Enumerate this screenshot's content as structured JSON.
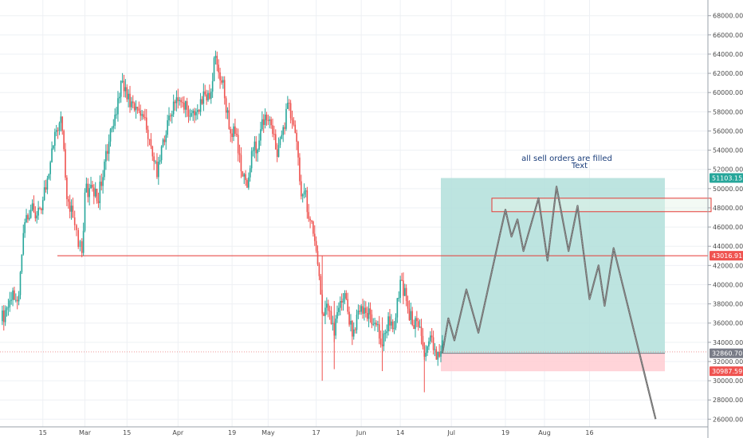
{
  "chart_data": {
    "type": "candlestick",
    "x_axis": {
      "tick_labels": [
        "15",
        "Mar",
        "15",
        "Apr",
        "19",
        "May",
        "17",
        "Jun",
        "14",
        "Jul",
        "19",
        "Aug",
        "16"
      ],
      "grid": true
    },
    "y_axis": {
      "ylim": [
        25000,
        69500
      ],
      "ticks": [
        26000,
        28000,
        30000,
        32000,
        34000,
        36000,
        38000,
        40000,
        42000,
        44000,
        46000,
        48000,
        50000,
        52000,
        54000,
        56000,
        58000,
        60000,
        62000,
        64000,
        66000,
        68000
      ],
      "tick_labels": [
        "26000.00",
        "28000.00",
        "30000.00",
        "32000.00",
        "34000.00",
        "36000.00",
        "38000.00",
        "40000.00",
        "42000.00",
        "44000.00",
        "46000.00",
        "48000.00",
        "50000.00",
        "52000.00",
        "54000.00",
        "56000.00",
        "58000.00",
        "60000.00",
        "62000.00",
        "64000.00",
        "66000.00",
        "68000.00"
      ],
      "position": "right",
      "grid": true
    },
    "price_tags": [
      {
        "value": 51103.15,
        "label": "51103.15",
        "color": "#26a69a"
      },
      {
        "value": 43016.91,
        "label": "43016.91",
        "color": "#ef5350"
      },
      {
        "value": 32860.7,
        "label": "32860.70",
        "color": "#787b86"
      },
      {
        "value": 30987.59,
        "label": "30987.59",
        "color": "#ef5350"
      }
    ],
    "horizontal_line": {
      "value": 43016.91,
      "color": "#e53935"
    },
    "dotted_line": {
      "value": 33000,
      "color": "#ef9a9a"
    },
    "position_tool": {
      "entry": 32860.7,
      "target": 51103.15,
      "stop": 30987.59,
      "profit_color": "#b2dfdb",
      "loss_color": "#ffcdd2"
    },
    "sell_zone": {
      "top": 49000,
      "bottom": 47600,
      "color": "#e53935"
    },
    "annotation": {
      "line1": "all sell orders are filled",
      "line2": "Text",
      "color": "#1a3d7a"
    },
    "projection_path": [
      {
        "date": "2021-06-28",
        "value": 32860
      },
      {
        "date": "2021-06-30",
        "value": 36500
      },
      {
        "date": "2021-07-02",
        "value": 34200
      },
      {
        "date": "2021-07-06",
        "value": 39500
      },
      {
        "date": "2021-07-10",
        "value": 35000
      },
      {
        "date": "2021-07-17",
        "value": 45000
      },
      {
        "date": "2021-07-19",
        "value": 47800
      },
      {
        "date": "2021-07-21",
        "value": 45000
      },
      {
        "date": "2021-07-23",
        "value": 46800
      },
      {
        "date": "2021-07-25",
        "value": 43500
      },
      {
        "date": "2021-07-30",
        "value": 49000
      },
      {
        "date": "2021-08-02",
        "value": 42500
      },
      {
        "date": "2021-08-05",
        "value": 50200
      },
      {
        "date": "2021-08-09",
        "value": 43500
      },
      {
        "date": "2021-08-12",
        "value": 48200
      },
      {
        "date": "2021-08-16",
        "value": 38500
      },
      {
        "date": "2021-08-19",
        "value": 42000
      },
      {
        "date": "2021-08-21",
        "value": 37800
      },
      {
        "date": "2021-08-24",
        "value": 43800
      },
      {
        "date": "2021-09-07",
        "value": 26000
      }
    ],
    "candles": [
      {
        "date": "2021-02-01",
        "value": 36200
      },
      {
        "date": "2021-02-03",
        "value": 37600
      },
      {
        "date": "2021-02-05",
        "value": 39400
      },
      {
        "date": "2021-02-07",
        "value": 38900
      },
      {
        "date": "2021-02-09",
        "value": 46500
      },
      {
        "date": "2021-02-11",
        "value": 47800
      },
      {
        "date": "2021-02-13",
        "value": 47200
      },
      {
        "date": "2021-02-15",
        "value": 48800
      },
      {
        "date": "2021-02-17",
        "value": 51500
      },
      {
        "date": "2021-02-19",
        "value": 55900
      },
      {
        "date": "2021-02-21",
        "value": 57500
      },
      {
        "date": "2021-02-22",
        "value": 54100
      },
      {
        "date": "2021-02-23",
        "value": 48900
      },
      {
        "date": "2021-02-25",
        "value": 47000
      },
      {
        "date": "2021-02-28",
        "value": 43300
      },
      {
        "date": "2021-03-01",
        "value": 49600
      },
      {
        "date": "2021-03-03",
        "value": 50400
      },
      {
        "date": "2021-03-05",
        "value": 48700
      },
      {
        "date": "2021-03-07",
        "value": 51200
      },
      {
        "date": "2021-03-09",
        "value": 54900
      },
      {
        "date": "2021-03-11",
        "value": 57700
      },
      {
        "date": "2021-03-13",
        "value": 61200
      },
      {
        "date": "2021-03-15",
        "value": 59300
      },
      {
        "date": "2021-03-17",
        "value": 58900
      },
      {
        "date": "2021-03-19",
        "value": 58100
      },
      {
        "date": "2021-03-21",
        "value": 57400
      },
      {
        "date": "2021-03-23",
        "value": 54400
      },
      {
        "date": "2021-03-25",
        "value": 51200
      },
      {
        "date": "2021-03-27",
        "value": 55100
      },
      {
        "date": "2021-03-29",
        "value": 57600
      },
      {
        "date": "2021-03-31",
        "value": 58900
      },
      {
        "date": "2021-04-02",
        "value": 59000
      },
      {
        "date": "2021-04-04",
        "value": 58200
      },
      {
        "date": "2021-04-06",
        "value": 58100
      },
      {
        "date": "2021-04-08",
        "value": 58000
      },
      {
        "date": "2021-04-10",
        "value": 59800
      },
      {
        "date": "2021-04-12",
        "value": 60100
      },
      {
        "date": "2021-04-13",
        "value": 63600
      },
      {
        "date": "2021-04-14",
        "value": 62900
      },
      {
        "date": "2021-04-16",
        "value": 61300
      },
      {
        "date": "2021-04-18",
        "value": 56200
      },
      {
        "date": "2021-04-20",
        "value": 55700
      },
      {
        "date": "2021-04-22",
        "value": 51800
      },
      {
        "date": "2021-04-24",
        "value": 50100
      },
      {
        "date": "2021-04-26",
        "value": 54000
      },
      {
        "date": "2021-04-28",
        "value": 55000
      },
      {
        "date": "2021-04-30",
        "value": 57700
      },
      {
        "date": "2021-05-02",
        "value": 56600
      },
      {
        "date": "2021-05-04",
        "value": 53300
      },
      {
        "date": "2021-05-06",
        "value": 56400
      },
      {
        "date": "2021-05-08",
        "value": 58900
      },
      {
        "date": "2021-05-10",
        "value": 55800
      },
      {
        "date": "2021-05-12",
        "value": 49200
      },
      {
        "date": "2021-05-13",
        "value": 49700
      },
      {
        "date": "2021-05-15",
        "value": 46700
      },
      {
        "date": "2021-05-17",
        "value": 43500
      },
      {
        "date": "2021-05-19",
        "value": 37000
      },
      {
        "date": "2021-05-21",
        "value": 37300
      },
      {
        "date": "2021-05-23",
        "value": 34700
      },
      {
        "date": "2021-05-25",
        "value": 38300
      },
      {
        "date": "2021-05-27",
        "value": 38500
      },
      {
        "date": "2021-05-29",
        "value": 34600
      },
      {
        "date": "2021-05-31",
        "value": 37300
      },
      {
        "date": "2021-06-02",
        "value": 37600
      },
      {
        "date": "2021-06-04",
        "value": 36900
      },
      {
        "date": "2021-06-06",
        "value": 35800
      },
      {
        "date": "2021-06-08",
        "value": 33600
      },
      {
        "date": "2021-06-10",
        "value": 36700
      },
      {
        "date": "2021-06-12",
        "value": 35500
      },
      {
        "date": "2021-06-14",
        "value": 40500
      },
      {
        "date": "2021-06-16",
        "value": 38300
      },
      {
        "date": "2021-06-18",
        "value": 35800
      },
      {
        "date": "2021-06-20",
        "value": 35600
      },
      {
        "date": "2021-06-22",
        "value": 32500
      },
      {
        "date": "2021-06-24",
        "value": 34700
      },
      {
        "date": "2021-06-26",
        "value": 32200
      },
      {
        "date": "2021-06-28",
        "value": 34200
      }
    ],
    "up_color": "#26a69a",
    "down_color": "#ef5350"
  }
}
